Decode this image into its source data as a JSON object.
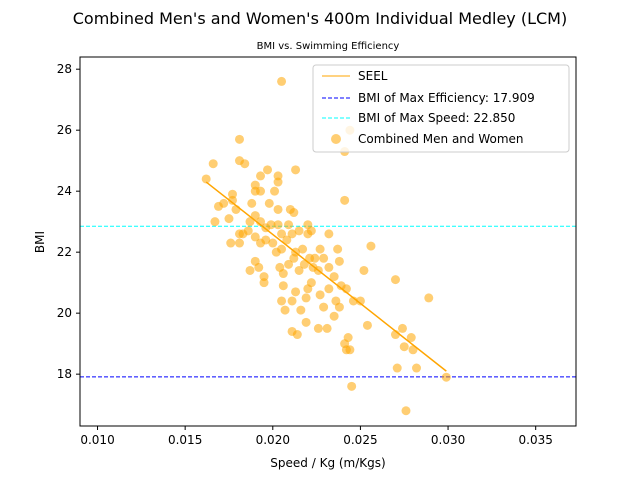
{
  "chart_data": {
    "type": "scatter",
    "title": "Combined Men's and Women's 400m Individual Medley (LCM)",
    "subtitle": "BMI vs. Swimming Efficiency",
    "xlabel": "Speed / Kg (m/Kgs)",
    "ylabel": "BMI",
    "xlim": [
      0.009,
      0.0373
    ],
    "ylim": [
      16.3,
      28.4
    ],
    "xticks": [
      0.01,
      0.015,
      0.02,
      0.025,
      0.03,
      0.035
    ],
    "xtick_labels": [
      "0.010",
      "0.015",
      "0.020",
      "0.025",
      "0.030",
      "0.035"
    ],
    "yticks": [
      18,
      20,
      22,
      24,
      26,
      28
    ],
    "ytick_labels": [
      "18",
      "20",
      "22",
      "24",
      "26",
      "28"
    ],
    "grid": false,
    "legend_position": "top-right",
    "colors": {
      "points": "#ffa500",
      "seel": "#ffa500",
      "max_efficiency": "#0000ff",
      "max_speed": "#00ffff"
    },
    "series": [
      {
        "name": "SEEL",
        "kind": "line",
        "x": [
          0.0162,
          0.0299
        ],
        "y": [
          24.3,
          18.1
        ]
      },
      {
        "name": "BMI of Max Efficiency: 17.909",
        "kind": "hline",
        "y": 17.909
      },
      {
        "name": "BMI of Max Speed: 22.850",
        "kind": "hline",
        "y": 22.85
      },
      {
        "name": "Combined Men and Women",
        "kind": "scatter",
        "points": [
          [
            0.0205,
            27.6
          ],
          [
            0.0241,
            25.3
          ],
          [
            0.0244,
            26.0
          ],
          [
            0.0181,
            25.7
          ],
          [
            0.0162,
            24.4
          ],
          [
            0.0166,
            24.9
          ],
          [
            0.0181,
            25.0
          ],
          [
            0.0184,
            24.9
          ],
          [
            0.019,
            24.2
          ],
          [
            0.0193,
            24.5
          ],
          [
            0.0197,
            24.7
          ],
          [
            0.0203,
            24.5
          ],
          [
            0.0203,
            24.3
          ],
          [
            0.0213,
            24.7
          ],
          [
            0.0177,
            23.9
          ],
          [
            0.0177,
            23.7
          ],
          [
            0.0188,
            23.6
          ],
          [
            0.019,
            24.0
          ],
          [
            0.0193,
            24.0
          ],
          [
            0.0198,
            23.6
          ],
          [
            0.0201,
            24.0
          ],
          [
            0.0203,
            23.4
          ],
          [
            0.021,
            23.4
          ],
          [
            0.0172,
            23.6
          ],
          [
            0.0167,
            23.0
          ],
          [
            0.0169,
            23.5
          ],
          [
            0.0175,
            23.1
          ],
          [
            0.0179,
            23.4
          ],
          [
            0.0181,
            22.6
          ],
          [
            0.0183,
            22.6
          ],
          [
            0.0187,
            23.0
          ],
          [
            0.019,
            23.2
          ],
          [
            0.0193,
            23.0
          ],
          [
            0.0196,
            22.8
          ],
          [
            0.0199,
            22.9
          ],
          [
            0.0203,
            22.9
          ],
          [
            0.0205,
            22.6
          ],
          [
            0.0209,
            22.9
          ],
          [
            0.0212,
            23.3
          ],
          [
            0.0215,
            22.7
          ],
          [
            0.022,
            22.9
          ],
          [
            0.0222,
            22.7
          ],
          [
            0.0241,
            23.7
          ],
          [
            0.0176,
            22.3
          ],
          [
            0.0181,
            22.3
          ],
          [
            0.0186,
            22.7
          ],
          [
            0.019,
            22.5
          ],
          [
            0.0193,
            22.3
          ],
          [
            0.0196,
            22.4
          ],
          [
            0.02,
            22.3
          ],
          [
            0.0202,
            22.0
          ],
          [
            0.0205,
            22.1
          ],
          [
            0.0208,
            22.4
          ],
          [
            0.0211,
            22.6
          ],
          [
            0.0213,
            22.0
          ],
          [
            0.0217,
            22.1
          ],
          [
            0.022,
            22.6
          ],
          [
            0.0224,
            21.8
          ],
          [
            0.0227,
            22.1
          ],
          [
            0.0232,
            22.6
          ],
          [
            0.0237,
            22.1
          ],
          [
            0.0256,
            22.2
          ],
          [
            0.019,
            21.7
          ],
          [
            0.0192,
            21.5
          ],
          [
            0.0195,
            21.2
          ],
          [
            0.0187,
            21.4
          ],
          [
            0.0204,
            21.5
          ],
          [
            0.0206,
            21.3
          ],
          [
            0.0209,
            21.6
          ],
          [
            0.0212,
            21.8
          ],
          [
            0.0215,
            21.4
          ],
          [
            0.0218,
            21.6
          ],
          [
            0.0221,
            21.8
          ],
          [
            0.0223,
            21.5
          ],
          [
            0.0226,
            21.4
          ],
          [
            0.0229,
            21.8
          ],
          [
            0.0232,
            21.5
          ],
          [
            0.0235,
            21.2
          ],
          [
            0.0238,
            21.7
          ],
          [
            0.0252,
            21.4
          ],
          [
            0.027,
            21.1
          ],
          [
            0.0195,
            21.0
          ],
          [
            0.0206,
            20.9
          ],
          [
            0.0211,
            20.4
          ],
          [
            0.0213,
            20.7
          ],
          [
            0.0216,
            20.1
          ],
          [
            0.0219,
            20.5
          ],
          [
            0.022,
            20.8
          ],
          [
            0.0222,
            21.0
          ],
          [
            0.0227,
            20.6
          ],
          [
            0.0229,
            20.2
          ],
          [
            0.0232,
            20.8
          ],
          [
            0.0236,
            20.4
          ],
          [
            0.0239,
            20.9
          ],
          [
            0.0242,
            20.8
          ],
          [
            0.0246,
            20.4
          ],
          [
            0.025,
            20.4
          ],
          [
            0.0289,
            20.5
          ],
          [
            0.0205,
            20.4
          ],
          [
            0.0207,
            20.1
          ],
          [
            0.0211,
            19.4
          ],
          [
            0.0214,
            19.3
          ],
          [
            0.0219,
            19.7
          ],
          [
            0.0226,
            19.5
          ],
          [
            0.0231,
            19.5
          ],
          [
            0.0235,
            19.9
          ],
          [
            0.0238,
            20.2
          ],
          [
            0.0241,
            19.0
          ],
          [
            0.0243,
            19.2
          ],
          [
            0.0254,
            19.6
          ],
          [
            0.027,
            19.3
          ],
          [
            0.0274,
            19.5
          ],
          [
            0.0275,
            18.9
          ],
          [
            0.0279,
            19.2
          ],
          [
            0.0242,
            18.8
          ],
          [
            0.0244,
            18.8
          ],
          [
            0.028,
            18.8
          ],
          [
            0.0271,
            18.2
          ],
          [
            0.0282,
            18.2
          ],
          [
            0.0245,
            17.6
          ],
          [
            0.0299,
            17.9
          ],
          [
            0.0276,
            16.8
          ]
        ]
      }
    ]
  }
}
